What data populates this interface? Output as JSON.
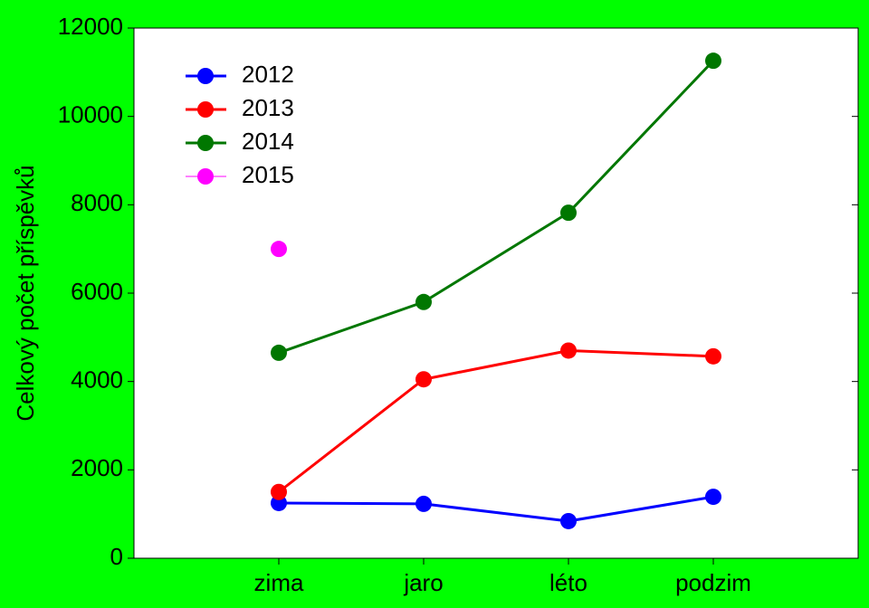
{
  "chart_data": {
    "type": "line",
    "y_label": "Celkový počet příspěvků",
    "categories": [
      "zima",
      "jaro",
      "léto",
      "podzim"
    ],
    "series": [
      {
        "name": "2012",
        "color": "#0000ff",
        "values": [
          1250,
          1230,
          840,
          1390
        ]
      },
      {
        "name": "2013",
        "color": "#ff0000",
        "values": [
          1500,
          4050,
          4700,
          4570
        ]
      },
      {
        "name": "2014",
        "color": "#007700",
        "values": [
          4650,
          5800,
          7820,
          11260
        ]
      },
      {
        "name": "2015",
        "color": "#ff00ff",
        "values": [
          7000,
          null,
          null,
          null
        ]
      }
    ],
    "ylim": [
      0,
      12000
    ],
    "yticks": [
      0,
      2000,
      4000,
      6000,
      8000,
      10000,
      12000
    ],
    "grid": false,
    "legend": "upper left"
  }
}
